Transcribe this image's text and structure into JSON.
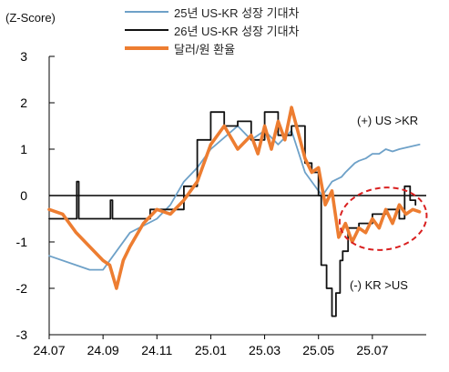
{
  "chart_data": {
    "type": "line",
    "ylabel": "(Z-Score)",
    "ylim": [
      -3,
      3
    ],
    "y_ticks": [
      "3",
      "2",
      "1",
      "0",
      "-1",
      "-2",
      "-3"
    ],
    "x_ticks": [
      "24.07",
      "24.09",
      "24.11",
      "25.01",
      "25.03",
      "25.05",
      "25.07"
    ],
    "grid": false,
    "legend_position": "top-center",
    "annotations": [
      "(+) US >KR",
      "(-) KR >US"
    ],
    "series": [
      {
        "name": "25년 US-KR 성장 기대차",
        "color": "#6ea1c8",
        "x": [
          0,
          2,
          3,
          4,
          5,
          6,
          8,
          9,
          10,
          11,
          12,
          14,
          15,
          16,
          17,
          18,
          19,
          20,
          20.3,
          21,
          21.7,
          22,
          22.7,
          23,
          23.5,
          24,
          24.5,
          25,
          25.5,
          26,
          27.5
        ],
        "values": [
          -1.3,
          -1.5,
          -1.6,
          -1.6,
          -1.2,
          -0.8,
          -0.5,
          -0.2,
          0.3,
          0.6,
          1.0,
          1.5,
          1.2,
          1.4,
          1.1,
          1.4,
          0.5,
          0.1,
          0.0,
          0.3,
          0.4,
          0.5,
          0.7,
          0.75,
          0.8,
          0.9,
          0.9,
          1.0,
          0.95,
          1.0,
          1.1
        ]
      },
      {
        "name": "26년 US-KR 성장 기대차",
        "color": "#111111",
        "x": [
          0,
          2,
          2.05,
          2.15,
          2.2,
          4.5,
          4.55,
          4.65,
          4.7,
          6.5,
          7.5,
          9,
          10,
          11,
          12,
          13,
          14,
          15,
          16,
          17,
          18,
          19,
          19.5,
          20,
          20.2,
          20.6,
          21,
          21.3,
          21.6,
          21.8,
          22.2,
          23,
          24,
          25,
          26,
          26.4,
          26.8,
          27.2
        ],
        "values": [
          -0.5,
          -0.5,
          0.3,
          0.3,
          -0.5,
          -0.5,
          -0.1,
          -0.1,
          -0.5,
          -0.5,
          -0.3,
          -0.3,
          0.2,
          1.2,
          1.8,
          1.5,
          1.6,
          1.2,
          1.8,
          1.3,
          1.5,
          0.7,
          0.5,
          0.0,
          -1.5,
          -2.0,
          -2.6,
          -2.1,
          -1.4,
          -1.2,
          -0.7,
          -0.6,
          -0.4,
          -0.3,
          -0.5,
          0.2,
          -0.1,
          -0.2
        ]
      },
      {
        "name": "달러/원 환율",
        "color": "#ed7d31",
        "x": [
          0,
          1,
          2,
          3,
          4,
          4.5,
          5,
          5.5,
          6,
          7,
          8,
          9,
          10,
          11,
          12,
          13,
          14,
          15,
          15.5,
          16,
          16.5,
          17,
          17.5,
          18,
          19,
          19.5,
          20,
          20.5,
          21,
          21.5,
          22,
          22.5,
          23,
          23.5,
          24,
          24.5,
          25,
          25.5,
          26,
          26.5,
          27,
          27.5
        ],
        "values": [
          -0.3,
          -0.4,
          -0.8,
          -1.1,
          -1.4,
          -1.5,
          -2.0,
          -1.4,
          -1.1,
          -0.6,
          -0.3,
          -0.4,
          -0.1,
          0.3,
          1.1,
          1.5,
          1.0,
          1.3,
          0.9,
          1.5,
          1.0,
          1.6,
          1.2,
          1.9,
          0.8,
          0.5,
          0.6,
          -0.2,
          0.1,
          -0.9,
          -0.6,
          -1.0,
          -0.7,
          -0.8,
          -0.5,
          -0.7,
          -0.3,
          -0.6,
          -0.2,
          -0.4,
          -0.3,
          -0.35
        ]
      }
    ]
  }
}
